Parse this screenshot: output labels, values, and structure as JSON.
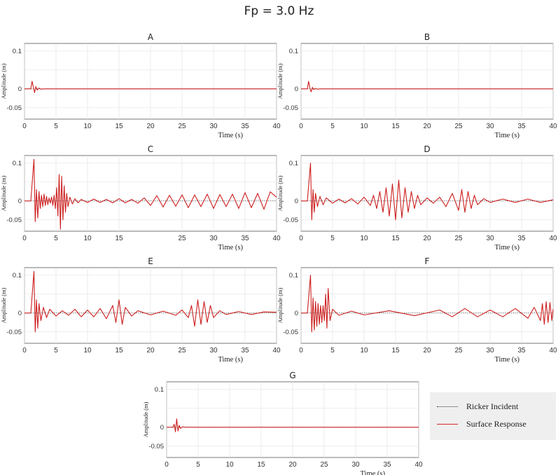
{
  "figure": {
    "title": "Fp = 3.0 Hz"
  },
  "legend": {
    "items": [
      {
        "label": "Ricker Incident",
        "color": "#333333",
        "style": "dotted"
      },
      {
        "label": "Surface  Response",
        "color": "#d62728",
        "style": "solid"
      }
    ]
  },
  "colors": {
    "response": "#cc1f1f",
    "incident": "#333333",
    "grid": "#e3e3e3",
    "axis": "#555555"
  },
  "chart_data": [
    {
      "type": "line",
      "title": "A",
      "xlabel": "Time (s)",
      "ylabel": "Amplitude (m)",
      "xlim": [
        0,
        40
      ],
      "ylim": [
        -0.08,
        0.12
      ],
      "xticks": [
        0,
        5,
        10,
        15,
        20,
        25,
        30,
        35,
        40
      ],
      "xtick_labels": [
        "0",
        "5",
        "10",
        "15",
        "20",
        "25",
        "30",
        "35",
        "40"
      ],
      "yticks": [
        -0.05,
        0,
        0.1
      ],
      "ytick_labels": [
        "-0.05",
        "0",
        "0.1"
      ],
      "grid": true,
      "series": [
        {
          "name": "Surface  Response",
          "x": [
            0,
            1.0,
            1.2,
            1.4,
            1.6,
            1.8,
            2.0,
            2.3,
            2.6,
            3.0,
            40
          ],
          "y": [
            0,
            0,
            0.02,
            0.005,
            -0.01,
            0.006,
            -0.003,
            0.002,
            -0.001,
            0,
            0
          ]
        }
      ]
    },
    {
      "type": "line",
      "title": "B",
      "xlabel": "Time (s)",
      "ylabel": "Amplitude (m)",
      "xlim": [
        0,
        40
      ],
      "ylim": [
        -0.08,
        0.12
      ],
      "xticks": [
        0,
        5,
        10,
        15,
        20,
        25,
        30,
        35,
        40
      ],
      "xtick_labels": [
        "0",
        "5",
        "10",
        "15",
        "20",
        "25",
        "30",
        "35",
        "40"
      ],
      "yticks": [
        -0.05,
        0,
        0.1
      ],
      "ytick_labels": [
        "-0.05",
        "0",
        "0.1"
      ],
      "grid": true,
      "series": [
        {
          "name": "Surface  Response",
          "x": [
            0,
            1.0,
            1.2,
            1.4,
            1.6,
            1.8,
            2.0,
            2.3,
            2.6,
            3.0,
            40
          ],
          "y": [
            0,
            0,
            0.02,
            0.002,
            -0.008,
            0.004,
            -0.002,
            0.001,
            -0.001,
            0,
            0
          ]
        }
      ]
    },
    {
      "type": "line",
      "title": "C",
      "xlabel": "Time (s)",
      "ylabel": "Amplitude (m)",
      "xlim": [
        0,
        40
      ],
      "ylim": [
        -0.08,
        0.12
      ],
      "xticks": [
        0,
        5,
        10,
        15,
        25,
        30,
        35,
        40
      ],
      "xtick_labels": [
        "0",
        "5",
        "10",
        "15",
        "25",
        "30",
        "35",
        "40"
      ],
      "yticks": [
        -0.05,
        0,
        0.1
      ],
      "ytick_labels": [
        "-0.05",
        "0",
        "0.1"
      ],
      "grid": true,
      "series": [
        {
          "name": "Surface  Response",
          "x": [
            0,
            1.0,
            1.5,
            1.7,
            1.9,
            2.1,
            2.3,
            2.5,
            2.7,
            2.9,
            3.1,
            3.3,
            3.5,
            3.7,
            3.9,
            4.1,
            4.3,
            4.5,
            4.7,
            4.9,
            5.1,
            5.3,
            5.5,
            5.7,
            5.9,
            6.1,
            6.3,
            6.5,
            6.7,
            6.9,
            7.2,
            7.6,
            8.0,
            8.5,
            9.0,
            10.0,
            11.0,
            12.0,
            13.0,
            14.0,
            15.0,
            16.0,
            17.0,
            18.0,
            19.0,
            20.0,
            21.0,
            22.0,
            23.0,
            24.0,
            25.0,
            26.0,
            27.0,
            28.0,
            29.0,
            30.0,
            31.0,
            32.0,
            33.0,
            34.0,
            35.0,
            36.0,
            37.0,
            38.0,
            39.0,
            40.0
          ],
          "y": [
            0,
            0,
            0.11,
            -0.055,
            0.03,
            -0.045,
            0.025,
            -0.02,
            0.015,
            -0.015,
            0.018,
            -0.012,
            0.012,
            -0.01,
            0.008,
            -0.006,
            0.01,
            -0.012,
            0.015,
            -0.02,
            0.035,
            -0.04,
            0.07,
            -0.075,
            0.065,
            -0.05,
            0.04,
            -0.03,
            0.02,
            -0.015,
            0.01,
            -0.008,
            0.006,
            -0.005,
            0.004,
            -0.004,
            0.005,
            -0.004,
            0.004,
            -0.005,
            0.006,
            -0.005,
            0.004,
            -0.006,
            0.008,
            -0.012,
            0.014,
            -0.016,
            0.015,
            -0.014,
            0.016,
            -0.018,
            0.016,
            -0.015,
            0.018,
            -0.02,
            0.017,
            -0.015,
            0.018,
            -0.02,
            0.022,
            -0.018,
            0.02,
            -0.022,
            0.024,
            0.01
          ]
        }
      ]
    },
    {
      "type": "line",
      "title": "D",
      "xlabel": "Time (s)",
      "ylabel": "Amplitude (m)",
      "xlim": [
        0,
        40
      ],
      "ylim": [
        -0.08,
        0.12
      ],
      "xticks": [
        0,
        5,
        10,
        15,
        20,
        25,
        30,
        35,
        40
      ],
      "xtick_labels": [
        "0",
        "5",
        "10",
        "15",
        "20",
        "25",
        "30",
        "35",
        "40"
      ],
      "yticks": [
        -0.05,
        0,
        0.1
      ],
      "ytick_labels": [
        "-0.05",
        "0",
        "0.1"
      ],
      "grid": true,
      "series": [
        {
          "name": "Surface  Response",
          "x": [
            0,
            1.0,
            1.5,
            1.7,
            1.9,
            2.1,
            2.3,
            2.6,
            3.0,
            3.5,
            4.0,
            5.0,
            6.0,
            7.0,
            8.0,
            9.0,
            10.0,
            11.0,
            11.5,
            12.0,
            12.5,
            13.0,
            13.5,
            14.0,
            14.5,
            15.0,
            15.5,
            16.0,
            16.5,
            17.0,
            17.5,
            18.0,
            18.5,
            19.0,
            20.0,
            21.0,
            22.0,
            23.0,
            24.0,
            25.0,
            25.5,
            26.0,
            26.5,
            27.0,
            27.5,
            28.0,
            29.0,
            30.0,
            32.0,
            34.0,
            36.0,
            38.0,
            40.0
          ],
          "y": [
            0,
            0,
            0.1,
            -0.05,
            0.03,
            -0.03,
            0.02,
            -0.015,
            0.012,
            -0.01,
            0.008,
            -0.006,
            0.005,
            -0.005,
            0.006,
            -0.008,
            0.01,
            -0.012,
            0.015,
            -0.02,
            0.025,
            -0.03,
            0.035,
            -0.04,
            0.045,
            -0.05,
            0.055,
            -0.045,
            0.035,
            -0.03,
            0.025,
            -0.02,
            0.015,
            -0.01,
            0.008,
            -0.006,
            0.01,
            -0.015,
            0.02,
            -0.025,
            0.03,
            -0.03,
            0.025,
            -0.02,
            0.015,
            -0.01,
            0.006,
            -0.004,
            0.005,
            -0.004,
            0.005,
            -0.004,
            0.003
          ]
        }
      ]
    },
    {
      "type": "line",
      "title": "E",
      "xlabel": "Time (s)",
      "ylabel": "Amplitude (m)",
      "xlim": [
        0,
        40
      ],
      "ylim": [
        -0.08,
        0.12
      ],
      "xticks": [
        0,
        5,
        10,
        15,
        20,
        25,
        30,
        35,
        40
      ],
      "xtick_labels": [
        "0",
        "5",
        "10",
        "15",
        "20",
        "25",
        "30",
        "35",
        "40"
      ],
      "yticks": [
        -0.05,
        0,
        0.1
      ],
      "ytick_labels": [
        "-0.05",
        "0",
        "0.1"
      ],
      "grid": true,
      "series": [
        {
          "name": "Surface  Response",
          "x": [
            0,
            1.0,
            1.5,
            1.7,
            1.9,
            2.1,
            2.3,
            2.6,
            3.0,
            3.5,
            4.0,
            5.0,
            6.0,
            7.0,
            8.0,
            9.0,
            10.0,
            11.0,
            12.0,
            13.0,
            14.0,
            14.5,
            15.0,
            15.5,
            16.0,
            17.0,
            18.0,
            20.0,
            22.0,
            24.0,
            25.0,
            26.0,
            26.5,
            27.0,
            27.5,
            28.0,
            28.5,
            29.0,
            29.5,
            30.0,
            31.0,
            32.0,
            34.0,
            36.0,
            38.0,
            40.0
          ],
          "y": [
            0,
            0,
            0.11,
            -0.05,
            0.035,
            -0.04,
            0.025,
            -0.02,
            0.015,
            -0.012,
            0.01,
            -0.008,
            0.006,
            -0.006,
            0.01,
            -0.01,
            0.008,
            -0.01,
            0.012,
            -0.015,
            0.02,
            -0.025,
            0.035,
            -0.03,
            0.015,
            -0.008,
            0.006,
            -0.005,
            0.005,
            -0.006,
            0.008,
            -0.012,
            0.02,
            -0.035,
            0.035,
            -0.03,
            0.03,
            -0.025,
            0.02,
            -0.012,
            0.006,
            -0.004,
            0.004,
            -0.004,
            0.003,
            0.002
          ]
        }
      ]
    },
    {
      "type": "line",
      "title": "F",
      "xlabel": "Time (s)",
      "ylabel": "Amplitude (m)",
      "xlim": [
        0,
        40
      ],
      "ylim": [
        -0.08,
        0.12
      ],
      "xticks": [
        0,
        5,
        10,
        15,
        20,
        25,
        30,
        35,
        40
      ],
      "xtick_labels": [
        "0",
        "5",
        "10",
        "15",
        "20",
        "25",
        "30",
        "35",
        "40"
      ],
      "yticks": [
        -0.05,
        0,
        0.1
      ],
      "ytick_labels": [
        "-0.05",
        "0",
        "0.1"
      ],
      "grid": true,
      "series": [
        {
          "name": "Surface  Response",
          "x": [
            0,
            1.0,
            1.5,
            1.7,
            1.9,
            2.1,
            2.3,
            2.5,
            2.7,
            2.9,
            3.1,
            3.3,
            3.5,
            3.7,
            3.9,
            4.1,
            4.3,
            4.6,
            5.0,
            6.0,
            8.0,
            10.0,
            14.0,
            18.0,
            22.0,
            24.0,
            26.0,
            28.0,
            30.0,
            32.0,
            34.0,
            36.0,
            37.0,
            38.0,
            38.3,
            38.6,
            38.9,
            39.2,
            39.5,
            39.8,
            40.0
          ],
          "y": [
            0,
            0,
            0.1,
            -0.05,
            0.04,
            -0.045,
            0.03,
            -0.035,
            0.025,
            -0.03,
            0.02,
            -0.025,
            0.02,
            -0.02,
            0.05,
            -0.04,
            0.065,
            -0.02,
            0.01,
            -0.006,
            0.005,
            -0.005,
            0.006,
            -0.007,
            0.008,
            -0.01,
            0.012,
            -0.01,
            0.008,
            -0.01,
            0.012,
            -0.014,
            0.015,
            -0.02,
            0.025,
            -0.03,
            0.03,
            -0.025,
            0.028,
            -0.02,
            0.01
          ]
        }
      ]
    },
    {
      "type": "line",
      "title": "G",
      "xlabel": "Time (s)",
      "ylabel": "Amplitude (m)",
      "xlim": [
        0,
        40
      ],
      "ylim": [
        -0.08,
        0.12
      ],
      "xticks": [
        0,
        5,
        10,
        15,
        20,
        25,
        30,
        35,
        40
      ],
      "xtick_labels": [
        "0",
        "5",
        "10",
        "15",
        "20",
        "25",
        "30",
        "35",
        "40"
      ],
      "yticks": [
        -0.05,
        0,
        0.1
      ],
      "ytick_labels": [
        "-0.05",
        "0",
        "0.1"
      ],
      "grid": true,
      "series": [
        {
          "name": "Surface  Response",
          "x": [
            0,
            1.0,
            1.2,
            1.4,
            1.6,
            1.8,
            2.0,
            2.2,
            2.5,
            3.0,
            40
          ],
          "y": [
            0,
            0,
            0.008,
            -0.012,
            0.022,
            -0.01,
            0.005,
            -0.003,
            0.001,
            0,
            0
          ]
        }
      ]
    }
  ]
}
